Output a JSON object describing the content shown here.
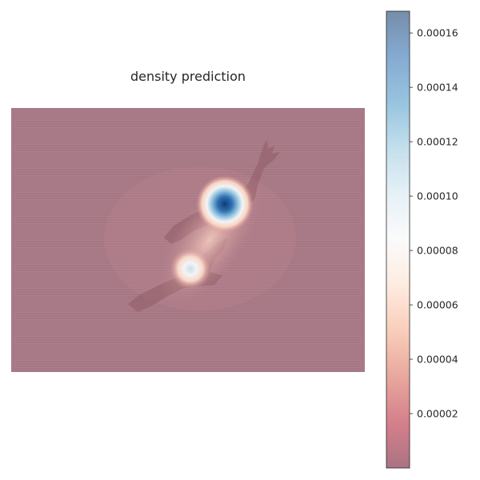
{
  "chart_data": {
    "type": "heatmap",
    "title": "density prediction",
    "xlabel": "",
    "ylabel": "",
    "axes_visible": false,
    "grid": false,
    "colormap": "RdBu",
    "overlay_alpha": 0.55,
    "background_image": "two soaring birds (eagles) silhouettes on a diagonal",
    "colorbar": {
      "placement": "right",
      "range": [
        0.0,
        0.000168
      ],
      "ticks": [
        2e-05,
        4e-05,
        6e-05,
        8e-05,
        0.0001,
        0.00012,
        0.00014,
        0.00016
      ],
      "tick_labels": [
        "0.00002",
        "0.00004",
        "0.00006",
        "0.00008",
        "0.00010",
        "0.00012",
        "0.00014",
        "0.00016"
      ]
    },
    "density_peaks": [
      {
        "name": "upper bird",
        "value": 0.000165
      },
      {
        "name": "lower bird",
        "value": 9.5e-05
      }
    ]
  }
}
